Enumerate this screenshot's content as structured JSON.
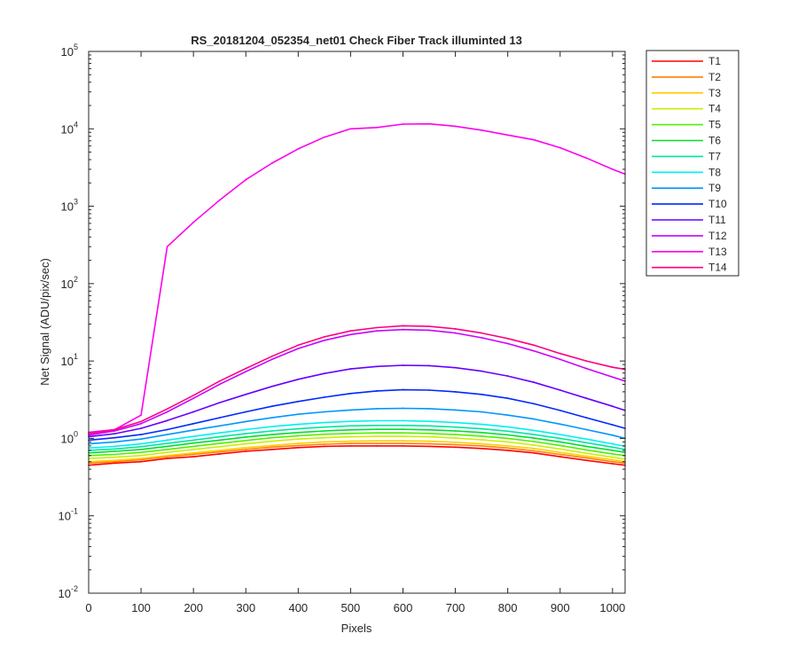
{
  "chart_data": {
    "type": "line",
    "title": "RS_20181204_052354_net01   Check Fiber     Track illuminted 13",
    "xlabel": "Pixels",
    "ylabel": "Net Signal (ADU/pix/sec)",
    "xlim": [
      0,
      1024
    ],
    "ylim": [
      0.01,
      100000
    ],
    "yscale": "log",
    "grid": false,
    "legend_position": "outside-top-right",
    "x_ticks": [
      0,
      100,
      200,
      300,
      400,
      500,
      600,
      700,
      800,
      900,
      1000
    ],
    "y_ticks": [
      {
        "exp": "-2",
        "value": 0.01
      },
      {
        "exp": "-1",
        "value": 0.1
      },
      {
        "exp": "0",
        "value": 1
      },
      {
        "exp": "1",
        "value": 10
      },
      {
        "exp": "2",
        "value": 100
      },
      {
        "exp": "3",
        "value": 1000
      },
      {
        "exp": "4",
        "value": 10000
      },
      {
        "exp": "5",
        "value": 100000
      }
    ],
    "x": [
      0,
      50,
      100,
      150,
      200,
      250,
      300,
      350,
      400,
      450,
      500,
      550,
      600,
      650,
      700,
      750,
      800,
      850,
      900,
      950,
      1000,
      1024
    ],
    "series": [
      {
        "name": "T1",
        "color": "#ff0000",
        "values": [
          0.45,
          0.48,
          0.5,
          0.55,
          0.58,
          0.63,
          0.68,
          0.72,
          0.76,
          0.79,
          0.8,
          0.8,
          0.8,
          0.79,
          0.77,
          0.74,
          0.7,
          0.65,
          0.58,
          0.52,
          0.47,
          0.45
        ]
      },
      {
        "name": "T2",
        "color": "#ff7f00",
        "values": [
          0.48,
          0.5,
          0.53,
          0.58,
          0.62,
          0.67,
          0.72,
          0.77,
          0.81,
          0.84,
          0.86,
          0.86,
          0.86,
          0.85,
          0.83,
          0.8,
          0.75,
          0.69,
          0.62,
          0.56,
          0.5,
          0.48
        ]
      },
      {
        "name": "T3",
        "color": "#ffcc00",
        "values": [
          0.5,
          0.52,
          0.55,
          0.6,
          0.65,
          0.7,
          0.76,
          0.81,
          0.86,
          0.9,
          0.92,
          0.93,
          0.93,
          0.92,
          0.89,
          0.85,
          0.8,
          0.74,
          0.66,
          0.59,
          0.53,
          0.5
        ]
      },
      {
        "name": "T4",
        "color": "#c8f000",
        "values": [
          0.55,
          0.57,
          0.6,
          0.66,
          0.72,
          0.78,
          0.85,
          0.92,
          0.98,
          1.02,
          1.05,
          1.06,
          1.06,
          1.05,
          1.01,
          0.96,
          0.9,
          0.82,
          0.73,
          0.64,
          0.57,
          0.54
        ]
      },
      {
        "name": "T5",
        "color": "#55ee00",
        "values": [
          0.6,
          0.62,
          0.66,
          0.72,
          0.79,
          0.86,
          0.94,
          1.02,
          1.08,
          1.13,
          1.16,
          1.18,
          1.18,
          1.16,
          1.12,
          1.07,
          1.0,
          0.91,
          0.81,
          0.71,
          0.63,
          0.6
        ]
      },
      {
        "name": "T6",
        "color": "#00dd33",
        "values": [
          0.65,
          0.68,
          0.72,
          0.79,
          0.87,
          0.95,
          1.04,
          1.12,
          1.19,
          1.25,
          1.29,
          1.31,
          1.31,
          1.29,
          1.25,
          1.19,
          1.11,
          1.01,
          0.9,
          0.79,
          0.7,
          0.66
        ]
      },
      {
        "name": "T7",
        "color": "#00e6a0",
        "values": [
          0.7,
          0.73,
          0.78,
          0.86,
          0.95,
          1.05,
          1.15,
          1.25,
          1.33,
          1.4,
          1.45,
          1.47,
          1.47,
          1.45,
          1.4,
          1.33,
          1.24,
          1.12,
          1.0,
          0.88,
          0.77,
          0.72
        ]
      },
      {
        "name": "T8",
        "color": "#00f0f0",
        "values": [
          0.75,
          0.79,
          0.85,
          0.95,
          1.06,
          1.18,
          1.3,
          1.42,
          1.52,
          1.6,
          1.66,
          1.69,
          1.69,
          1.66,
          1.6,
          1.52,
          1.41,
          1.27,
          1.12,
          0.98,
          0.85,
          0.79
        ]
      },
      {
        "name": "T9",
        "color": "#0096ff",
        "values": [
          0.85,
          0.9,
          0.98,
          1.12,
          1.28,
          1.45,
          1.65,
          1.85,
          2.05,
          2.2,
          2.33,
          2.42,
          2.45,
          2.42,
          2.33,
          2.2,
          2.0,
          1.78,
          1.53,
          1.3,
          1.1,
          1.0
        ]
      },
      {
        "name": "T10",
        "color": "#0028ff",
        "values": [
          0.95,
          1.02,
          1.12,
          1.3,
          1.55,
          1.85,
          2.2,
          2.6,
          3.0,
          3.4,
          3.8,
          4.1,
          4.25,
          4.2,
          4.0,
          3.7,
          3.3,
          2.8,
          2.3,
          1.85,
          1.5,
          1.35
        ]
      },
      {
        "name": "T11",
        "color": "#6600ff",
        "values": [
          1.05,
          1.15,
          1.35,
          1.7,
          2.2,
          2.9,
          3.7,
          4.7,
          5.8,
          6.9,
          7.9,
          8.5,
          8.8,
          8.7,
          8.2,
          7.4,
          6.4,
          5.3,
          4.2,
          3.3,
          2.6,
          2.3
        ]
      },
      {
        "name": "T12",
        "color": "#cc00ff",
        "values": [
          1.1,
          1.25,
          1.55,
          2.2,
          3.3,
          5.0,
          7.3,
          10.5,
          14.5,
          18.5,
          22.0,
          24.5,
          25.5,
          25.0,
          23.0,
          20.0,
          16.8,
          13.5,
          10.5,
          8.0,
          6.2,
          5.5
        ]
      },
      {
        "name": "T13",
        "color": "#ff00ee",
        "values": [
          1.2,
          1.3,
          2.0,
          300,
          620,
          1200,
          2200,
          3600,
          5500,
          7800,
          10000,
          10400,
          11500,
          11600,
          10800,
          9600,
          8300,
          7200,
          5700,
          4200,
          3000,
          2600
        ]
      },
      {
        "name": "T14",
        "color": "#ff007f",
        "values": [
          1.15,
          1.3,
          1.65,
          2.4,
          3.6,
          5.5,
          8.0,
          11.5,
          16.0,
          20.5,
          24.5,
          27.0,
          28.5,
          28.0,
          26.0,
          23.0,
          19.5,
          16.0,
          12.5,
          10.0,
          8.3,
          7.8
        ]
      }
    ]
  }
}
